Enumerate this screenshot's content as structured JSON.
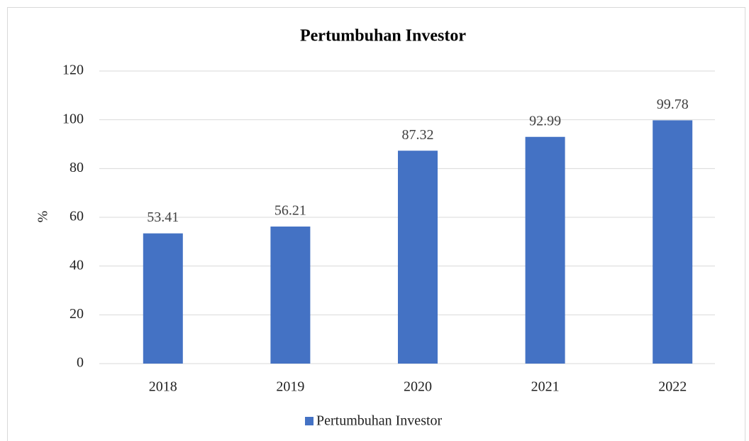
{
  "chart_data": {
    "type": "bar",
    "title": "Pertumbuhan Investor",
    "y_label": "%",
    "categories": [
      "2018",
      "2019",
      "2020",
      "2021",
      "2022"
    ],
    "series": [
      {
        "name": "Pertumbuhan Investor",
        "color": "#4472c4",
        "values": [
          53.41,
          56.21,
          87.32,
          92.99,
          99.78
        ]
      }
    ],
    "ylim": [
      0,
      120
    ],
    "yticks": [
      0,
      20,
      40,
      60,
      80,
      100,
      120
    ],
    "grid": true,
    "legend": "bottom"
  }
}
